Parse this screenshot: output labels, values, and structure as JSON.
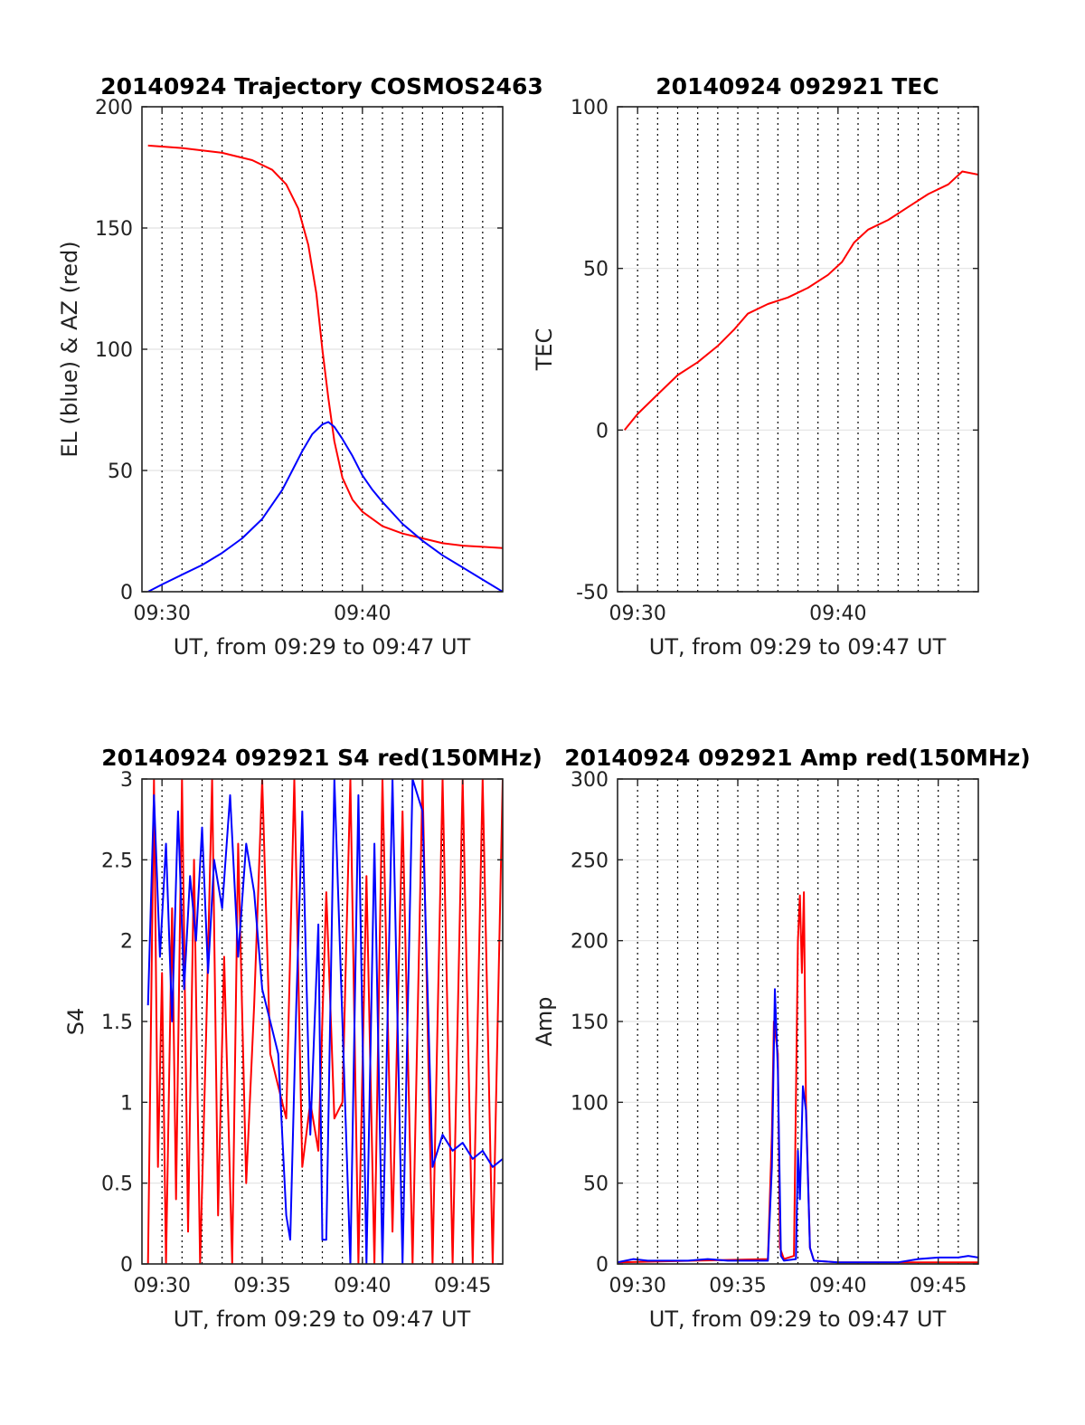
{
  "chart_data": [
    {
      "id": "p1",
      "type": "line",
      "title": "20140924 Trajectory COSMOS2463",
      "xlabel": "UT, from 09:29 to 09:47 UT",
      "ylabel": "EL (blue) & AZ (red)",
      "x_unit": "minutes past 09:00 UT",
      "xlim": [
        29.0,
        47.0
      ],
      "ylim": [
        0,
        200
      ],
      "yticks": [
        0,
        50,
        100,
        150,
        200
      ],
      "xticks": [
        {
          "x": 30,
          "label": "09:30"
        },
        {
          "x": 40,
          "label": "09:40"
        }
      ],
      "grid": true,
      "series": [
        {
          "color": "#ff0000",
          "x": [
            29.3,
            31,
            33,
            34.5,
            35.5,
            36.2,
            36.8,
            37.3,
            37.7,
            38.0,
            38.3,
            38.6,
            39.0,
            39.5,
            40.0,
            41,
            42,
            43,
            44,
            45,
            46,
            47
          ],
          "values": [
            184,
            183,
            181,
            178,
            174,
            168,
            158,
            143,
            123,
            100,
            80,
            62,
            47,
            38,
            33,
            27,
            24,
            22,
            20,
            19,
            18.5,
            18
          ]
        },
        {
          "color": "#0000ff",
          "x": [
            29.3,
            30,
            31,
            32,
            33,
            34,
            35,
            36,
            36.5,
            37,
            37.5,
            38.0,
            38.3,
            38.6,
            39,
            39.5,
            40,
            40.5,
            41,
            42,
            43,
            44,
            45,
            46,
            47
          ],
          "values": [
            0,
            3,
            7,
            11,
            16,
            22,
            30,
            42,
            50,
            58,
            65,
            69,
            70,
            68,
            63,
            56,
            48,
            42,
            37,
            28,
            21,
            15,
            10,
            5,
            0
          ]
        }
      ]
    },
    {
      "id": "p2",
      "type": "line",
      "title": "20140924 092921 TEC",
      "xlabel": "UT, from 09:29 to 09:47 UT",
      "ylabel": "TEC",
      "x_unit": "minutes past 09:00 UT",
      "xlim": [
        29.0,
        47.0
      ],
      "ylim": [
        -50,
        100
      ],
      "yticks": [
        -50,
        0,
        50,
        100
      ],
      "xticks": [
        {
          "x": 30,
          "label": "09:30"
        },
        {
          "x": 40,
          "label": "09:40"
        }
      ],
      "grid": true,
      "series": [
        {
          "color": "#ff0000",
          "x": [
            29.35,
            30,
            31,
            32,
            33,
            34,
            34.8,
            35.5,
            36.5,
            37.5,
            38.5,
            39.5,
            40.2,
            40.8,
            41.5,
            42.5,
            43.5,
            44.5,
            45.5,
            46.2,
            47
          ],
          "values": [
            0,
            5,
            11,
            17,
            21,
            26,
            31,
            36,
            39,
            41,
            44,
            48,
            52,
            58,
            62,
            65,
            69,
            73,
            76,
            80,
            79
          ]
        }
      ]
    },
    {
      "id": "p3",
      "type": "line",
      "title": "20140924 092921 S4 red(150MHz)",
      "xlabel": "UT, from 09:29 to 09:47 UT",
      "ylabel": "S4",
      "x_unit": "minutes past 09:00 UT",
      "xlim": [
        29.0,
        47.0
      ],
      "ylim": [
        0,
        3
      ],
      "yticks": [
        0,
        0.5,
        1,
        1.5,
        2,
        2.5,
        3
      ],
      "xticks": [
        {
          "x": 30,
          "label": "09:30"
        },
        {
          "x": 35,
          "label": "09:35"
        },
        {
          "x": 40,
          "label": "09:40"
        },
        {
          "x": 45,
          "label": "09:45"
        }
      ],
      "grid": true,
      "series": [
        {
          "color": "#ff0000",
          "x": [
            29.3,
            29.6,
            29.8,
            30.0,
            30.2,
            30.5,
            30.7,
            31.0,
            31.3,
            31.6,
            31.9,
            32.2,
            32.5,
            32.8,
            33.1,
            33.5,
            33.8,
            34.2,
            34.6,
            35.0,
            35.4,
            35.8,
            36.2,
            36.6,
            37.0,
            37.4,
            37.8,
            38.2,
            38.6,
            39.0,
            39.4,
            39.8,
            40.2,
            40.6,
            41.0,
            41.5,
            42.0,
            42.5,
            43.0,
            43.5,
            44.0,
            44.5,
            45.0,
            45.5,
            46.0,
            46.5,
            47.0
          ],
          "values": [
            0,
            3,
            0.6,
            1.8,
            0,
            2.2,
            0.4,
            3,
            0.2,
            2.5,
            0,
            1.4,
            3,
            0.3,
            1.9,
            0,
            2.6,
            0.5,
            1.6,
            3,
            1.3,
            1.1,
            0.9,
            3,
            0.6,
            1.0,
            0.7,
            2.3,
            0.9,
            1.0,
            3,
            0,
            2.4,
            0,
            3,
            0.2,
            2.8,
            0,
            3,
            0,
            3,
            0,
            3,
            0,
            3,
            0,
            3
          ]
        },
        {
          "color": "#0000ff",
          "x": [
            29.3,
            29.6,
            29.9,
            30.2,
            30.5,
            30.8,
            31.1,
            31.4,
            31.7,
            32.0,
            32.3,
            32.6,
            33.0,
            33.4,
            33.8,
            34.2,
            34.6,
            35.0,
            35.4,
            35.8,
            36.2,
            36.4,
            36.7,
            37.0,
            37.4,
            37.8,
            38.0,
            38.2,
            38.6,
            39.0,
            39.4,
            39.8,
            40.2,
            40.6,
            41.0,
            41.5,
            42.0,
            42.5,
            43.0,
            43.5,
            44.0,
            44.5,
            45.0,
            45.5,
            46.0,
            46.5,
            47.0
          ],
          "values": [
            1.6,
            2.9,
            1.9,
            2.6,
            1.5,
            2.8,
            1.7,
            2.4,
            2.0,
            2.7,
            1.8,
            2.5,
            2.2,
            2.9,
            1.9,
            2.6,
            2.3,
            1.7,
            1.5,
            1.3,
            0.3,
            0.15,
            1.6,
            2.8,
            0.8,
            2.1,
            0.15,
            0.15,
            3,
            1.5,
            0,
            2.9,
            0,
            2.6,
            0,
            3,
            0,
            3,
            2.8,
            0.6,
            0.8,
            0.7,
            0.75,
            0.65,
            0.7,
            0.6,
            0.65
          ]
        }
      ]
    },
    {
      "id": "p4",
      "type": "line",
      "title": "20140924 092921 Amp red(150MHz)",
      "xlabel": "UT, from 09:29 to 09:47 UT",
      "ylabel": "Amp",
      "x_unit": "minutes past 09:00 UT",
      "xlim": [
        29.0,
        47.0
      ],
      "ylim": [
        0,
        300
      ],
      "yticks": [
        0,
        50,
        100,
        150,
        200,
        250,
        300
      ],
      "xticks": [
        {
          "x": 30,
          "label": "09:30"
        },
        {
          "x": 35,
          "label": "09:35"
        },
        {
          "x": 40,
          "label": "09:40"
        },
        {
          "x": 45,
          "label": "09:45"
        }
      ],
      "grid": true,
      "series": [
        {
          "color": "#ff0000",
          "x": [
            29.0,
            36.5,
            36.7,
            36.8,
            37.0,
            37.1,
            37.3,
            37.8,
            38.0,
            38.1,
            38.2,
            38.3,
            38.4,
            38.6,
            38.8,
            40,
            47.0
          ],
          "values": [
            1,
            3,
            80,
            150,
            130,
            10,
            3,
            5,
            200,
            228,
            180,
            230,
            100,
            10,
            2,
            1,
            1
          ]
        },
        {
          "color": "#0000ff",
          "x": [
            29.0,
            29.8,
            30.5,
            31.5,
            32.5,
            33.5,
            34.5,
            35.5,
            36.5,
            36.7,
            36.85,
            37.0,
            37.15,
            37.3,
            37.9,
            38.0,
            38.1,
            38.25,
            38.4,
            38.6,
            38.8,
            40,
            41,
            42,
            43,
            44,
            45,
            46,
            46.5,
            47.0
          ],
          "values": [
            1,
            3,
            2,
            2,
            2,
            3,
            2,
            2,
            2,
            60,
            170,
            120,
            5,
            2,
            3,
            70,
            40,
            110,
            95,
            10,
            2,
            1,
            1,
            1,
            1,
            3,
            4,
            4,
            5,
            4
          ]
        }
      ]
    }
  ]
}
